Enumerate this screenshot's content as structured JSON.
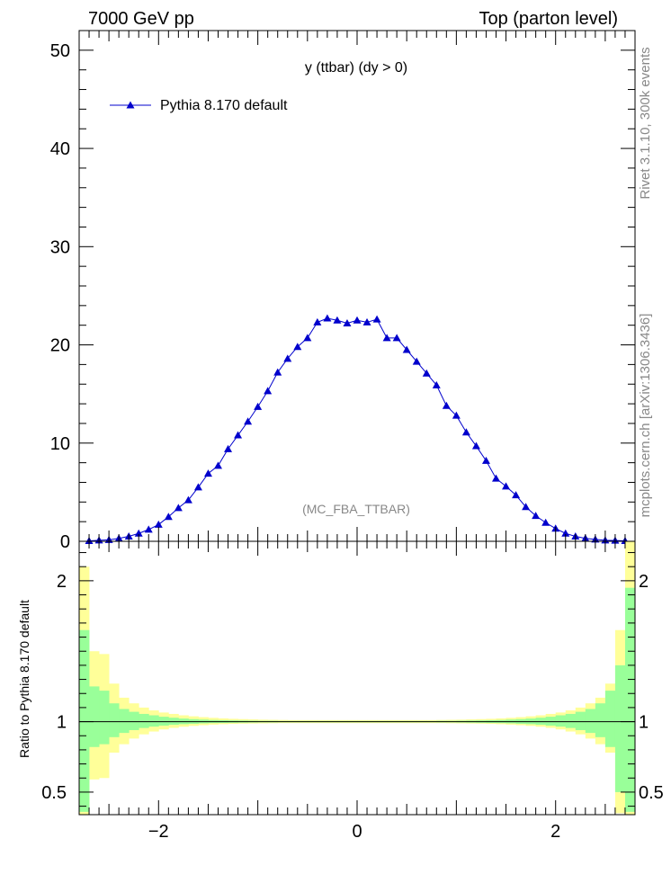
{
  "header": {
    "left": "7000 GeV pp",
    "right": "Top (parton level)"
  },
  "side_labels": {
    "rivet": "Rivet 3.1.10,  300k events",
    "mcplots": "mcplots.cern.ch [arXiv:1306.3436]"
  },
  "colors": {
    "series": "#0000cc",
    "band_inner": "#99ff99",
    "band_outer": "#ffff99",
    "watermark": "#888888"
  },
  "chart_data": [
    {
      "type": "line",
      "title": "y (ttbar) (dy > 0)",
      "watermark": "(MC_FBA_TTBAR)",
      "xlim": [
        -2.8,
        2.8
      ],
      "ylim": [
        0,
        52
      ],
      "yticks": [
        0,
        10,
        20,
        30,
        40,
        50
      ],
      "legend_position": "top-left",
      "series": [
        {
          "name": "Pythia 8.170 default",
          "marker": "triangle",
          "x": [
            -2.7,
            -2.6,
            -2.5,
            -2.4,
            -2.3,
            -2.2,
            -2.1,
            -2.0,
            -1.9,
            -1.8,
            -1.7,
            -1.6,
            -1.5,
            -1.4,
            -1.3,
            -1.2,
            -1.1,
            -1.0,
            -0.9,
            -0.8,
            -0.7,
            -0.6,
            -0.5,
            -0.4,
            -0.3,
            -0.2,
            -0.1,
            0.0,
            0.1,
            0.2,
            0.3,
            0.4,
            0.5,
            0.6,
            0.7,
            0.8,
            0.9,
            1.0,
            1.1,
            1.2,
            1.3,
            1.4,
            1.5,
            1.6,
            1.7,
            1.8,
            1.9,
            2.0,
            2.1,
            2.2,
            2.3,
            2.4,
            2.5,
            2.6,
            2.7
          ],
          "y": [
            0.05,
            0.1,
            0.15,
            0.3,
            0.5,
            0.8,
            1.2,
            1.7,
            2.5,
            3.4,
            4.2,
            5.5,
            6.9,
            7.7,
            9.4,
            10.8,
            12.2,
            13.7,
            15.3,
            17.2,
            18.6,
            19.8,
            20.7,
            22.3,
            22.7,
            22.5,
            22.2,
            22.5,
            22.3,
            22.6,
            20.7,
            20.7,
            19.5,
            18.3,
            17.1,
            15.9,
            13.8,
            12.8,
            11.1,
            9.7,
            8.2,
            6.4,
            5.6,
            4.7,
            3.5,
            2.6,
            1.9,
            1.3,
            0.8,
            0.5,
            0.3,
            0.2,
            0.1,
            0.08,
            0.05
          ]
        }
      ]
    },
    {
      "type": "area",
      "ylabel": "Ratio to Pythia 8.170 default",
      "xlim": [
        -2.8,
        2.8
      ],
      "ylim": [
        0.34,
        2.28
      ],
      "xticks": [
        -2,
        0,
        2
      ],
      "yticks": [
        0.5,
        1,
        2
      ],
      "reference_line": 1,
      "bin_edges": [
        -2.8,
        -2.7,
        -2.6,
        -2.5,
        -2.4,
        -2.3,
        -2.2,
        -2.1,
        -2.0,
        -1.9,
        -1.8,
        -1.7,
        -1.6,
        -1.5,
        -1.4,
        -1.3,
        -1.2,
        -1.1,
        -1.0,
        -0.9,
        -0.8,
        -0.7,
        -0.6,
        -0.5,
        -0.4,
        -0.3,
        -0.2,
        -0.1,
        0.0,
        0.1,
        0.2,
        0.3,
        0.4,
        0.5,
        0.6,
        0.7,
        0.8,
        0.9,
        1.0,
        1.1,
        1.2,
        1.3,
        1.4,
        1.5,
        1.6,
        1.7,
        1.8,
        1.9,
        2.0,
        2.1,
        2.2,
        2.3,
        2.4,
        2.5,
        2.6,
        2.7,
        2.8
      ],
      "inner_band_low": [
        0.36,
        0.82,
        0.84,
        0.89,
        0.92,
        0.94,
        0.955,
        0.965,
        0.972,
        0.978,
        0.982,
        0.985,
        0.988,
        0.99,
        0.991,
        0.992,
        0.993,
        0.994,
        0.995,
        0.995,
        0.996,
        0.996,
        0.996,
        0.996,
        0.996,
        0.996,
        0.996,
        0.996,
        0.996,
        0.996,
        0.996,
        0.996,
        0.996,
        0.996,
        0.996,
        0.996,
        0.995,
        0.995,
        0.994,
        0.993,
        0.992,
        0.991,
        0.99,
        0.988,
        0.985,
        0.982,
        0.978,
        0.972,
        0.965,
        0.955,
        0.94,
        0.92,
        0.89,
        0.82,
        0.5,
        0.36
      ],
      "inner_band_high": [
        1.65,
        1.25,
        1.22,
        1.13,
        1.09,
        1.07,
        1.055,
        1.045,
        1.035,
        1.028,
        1.022,
        1.018,
        1.015,
        1.012,
        1.01,
        1.009,
        1.008,
        1.007,
        1.006,
        1.006,
        1.005,
        1.005,
        1.005,
        1.005,
        1.005,
        1.005,
        1.005,
        1.005,
        1.005,
        1.005,
        1.005,
        1.005,
        1.005,
        1.005,
        1.005,
        1.005,
        1.006,
        1.006,
        1.007,
        1.008,
        1.009,
        1.01,
        1.012,
        1.015,
        1.018,
        1.022,
        1.028,
        1.035,
        1.045,
        1.055,
        1.07,
        1.09,
        1.13,
        1.22,
        1.4,
        1.95
      ],
      "outer_band_low": [
        0.34,
        0.59,
        0.6,
        0.78,
        0.84,
        0.88,
        0.91,
        0.93,
        0.945,
        0.956,
        0.964,
        0.97,
        0.975,
        0.979,
        0.982,
        0.984,
        0.986,
        0.987,
        0.988,
        0.989,
        0.99,
        0.99,
        0.99,
        0.99,
        0.99,
        0.99,
        0.99,
        0.99,
        0.99,
        0.99,
        0.99,
        0.99,
        0.99,
        0.99,
        0.99,
        0.99,
        0.99,
        0.989,
        0.988,
        0.987,
        0.986,
        0.984,
        0.982,
        0.979,
        0.975,
        0.97,
        0.964,
        0.956,
        0.945,
        0.93,
        0.91,
        0.88,
        0.84,
        0.78,
        0.35,
        0.34
      ],
      "outer_band_high": [
        2.1,
        1.5,
        1.48,
        1.27,
        1.17,
        1.13,
        1.1,
        1.08,
        1.065,
        1.055,
        1.045,
        1.038,
        1.032,
        1.027,
        1.023,
        1.02,
        1.018,
        1.016,
        1.014,
        1.013,
        1.012,
        1.011,
        1.011,
        1.011,
        1.011,
        1.011,
        1.011,
        1.011,
        1.011,
        1.011,
        1.011,
        1.011,
        1.011,
        1.011,
        1.011,
        1.011,
        1.012,
        1.013,
        1.014,
        1.016,
        1.018,
        1.02,
        1.023,
        1.027,
        1.032,
        1.038,
        1.045,
        1.055,
        1.065,
        1.08,
        1.1,
        1.13,
        1.17,
        1.27,
        1.65,
        2.28
      ]
    }
  ]
}
